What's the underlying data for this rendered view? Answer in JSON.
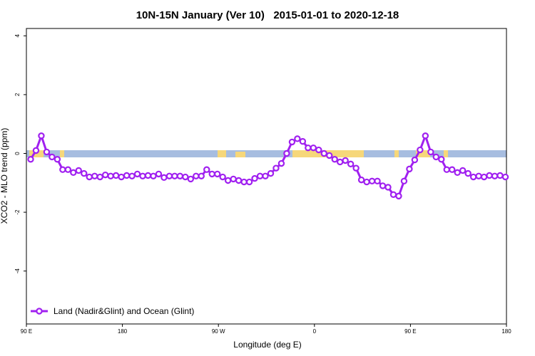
{
  "chart_data": {
    "type": "line",
    "title": "10N-15N January (Ver 10)   2015-01-01 to 2020-12-18",
    "x_label": "Longitude (deg E)",
    "y_label": "XCO2 - MLO trend (ppm)",
    "x": [
      94,
      99,
      104,
      109,
      114,
      119,
      124,
      129,
      134,
      139,
      144,
      149,
      154,
      159,
      164,
      169,
      174,
      179,
      184,
      189,
      194,
      199,
      204,
      209,
      214,
      219,
      224,
      229,
      234,
      239,
      244,
      249,
      254,
      259,
      264,
      269,
      274,
      279,
      284,
      289,
      294,
      299,
      304,
      309,
      314,
      319,
      324,
      329,
      334,
      339,
      344,
      349,
      354,
      359,
      364,
      369,
      374,
      379,
      384,
      389,
      394,
      399,
      404,
      409,
      414,
      419,
      424,
      429,
      434,
      439,
      444,
      449,
      454,
      459,
      464,
      469,
      474,
      479,
      484,
      489,
      494,
      499,
      504,
      509,
      514,
      519,
      524,
      529,
      534,
      539
    ],
    "series": [
      {
        "name": "Land (Nadir&Glint) and Ocean (Glint)",
        "color": "#a020f0",
        "values": [
          -0.2,
          0.1,
          0.6,
          0.05,
          -0.12,
          -0.2,
          -0.55,
          -0.55,
          -0.65,
          -0.58,
          -0.68,
          -0.8,
          -0.77,
          -0.8,
          -0.73,
          -0.77,
          -0.75,
          -0.8,
          -0.75,
          -0.77,
          -0.7,
          -0.77,
          -0.75,
          -0.77,
          -0.7,
          -0.82,
          -0.77,
          -0.77,
          -0.77,
          -0.8,
          -0.87,
          -0.77,
          -0.77,
          -0.55,
          -0.7,
          -0.7,
          -0.8,
          -0.92,
          -0.87,
          -0.92,
          -0.97,
          -0.97,
          -0.85,
          -0.77,
          -0.77,
          -0.68,
          -0.5,
          -0.34,
          0,
          0.39,
          0.5,
          0.41,
          0.19,
          0.19,
          0.12,
          0,
          -0.07,
          -0.2,
          -0.29,
          -0.24,
          -0.36,
          -0.5,
          -0.9,
          -0.97,
          -0.94,
          -0.94,
          -1.1,
          -1.15,
          -1.4,
          -1.45,
          -0.94,
          -0.53,
          -0.22,
          0.12,
          0.6,
          0.05,
          -0.12,
          -0.2,
          -0.55,
          -0.55,
          -0.65,
          -0.58,
          -0.68,
          -0.8,
          -0.77,
          -0.8,
          -0.75,
          -0.77,
          -0.75,
          -0.8
        ]
      }
    ],
    "xlim": [
      90,
      540
    ],
    "xticks": [
      {
        "value": 90,
        "label": "90 E"
      },
      180,
      {
        "value": 270,
        "label": "90 W"
      },
      {
        "value": 360,
        "label": "0"
      },
      {
        "value": 450,
        "label": "90 E"
      },
      {
        "value": 540,
        "label": "180"
      }
    ],
    "ylim": [
      -5.8,
      4.25
    ],
    "yticks": [
      -4,
      -2,
      0,
      2,
      4
    ],
    "legend": "bottom-left"
  }
}
